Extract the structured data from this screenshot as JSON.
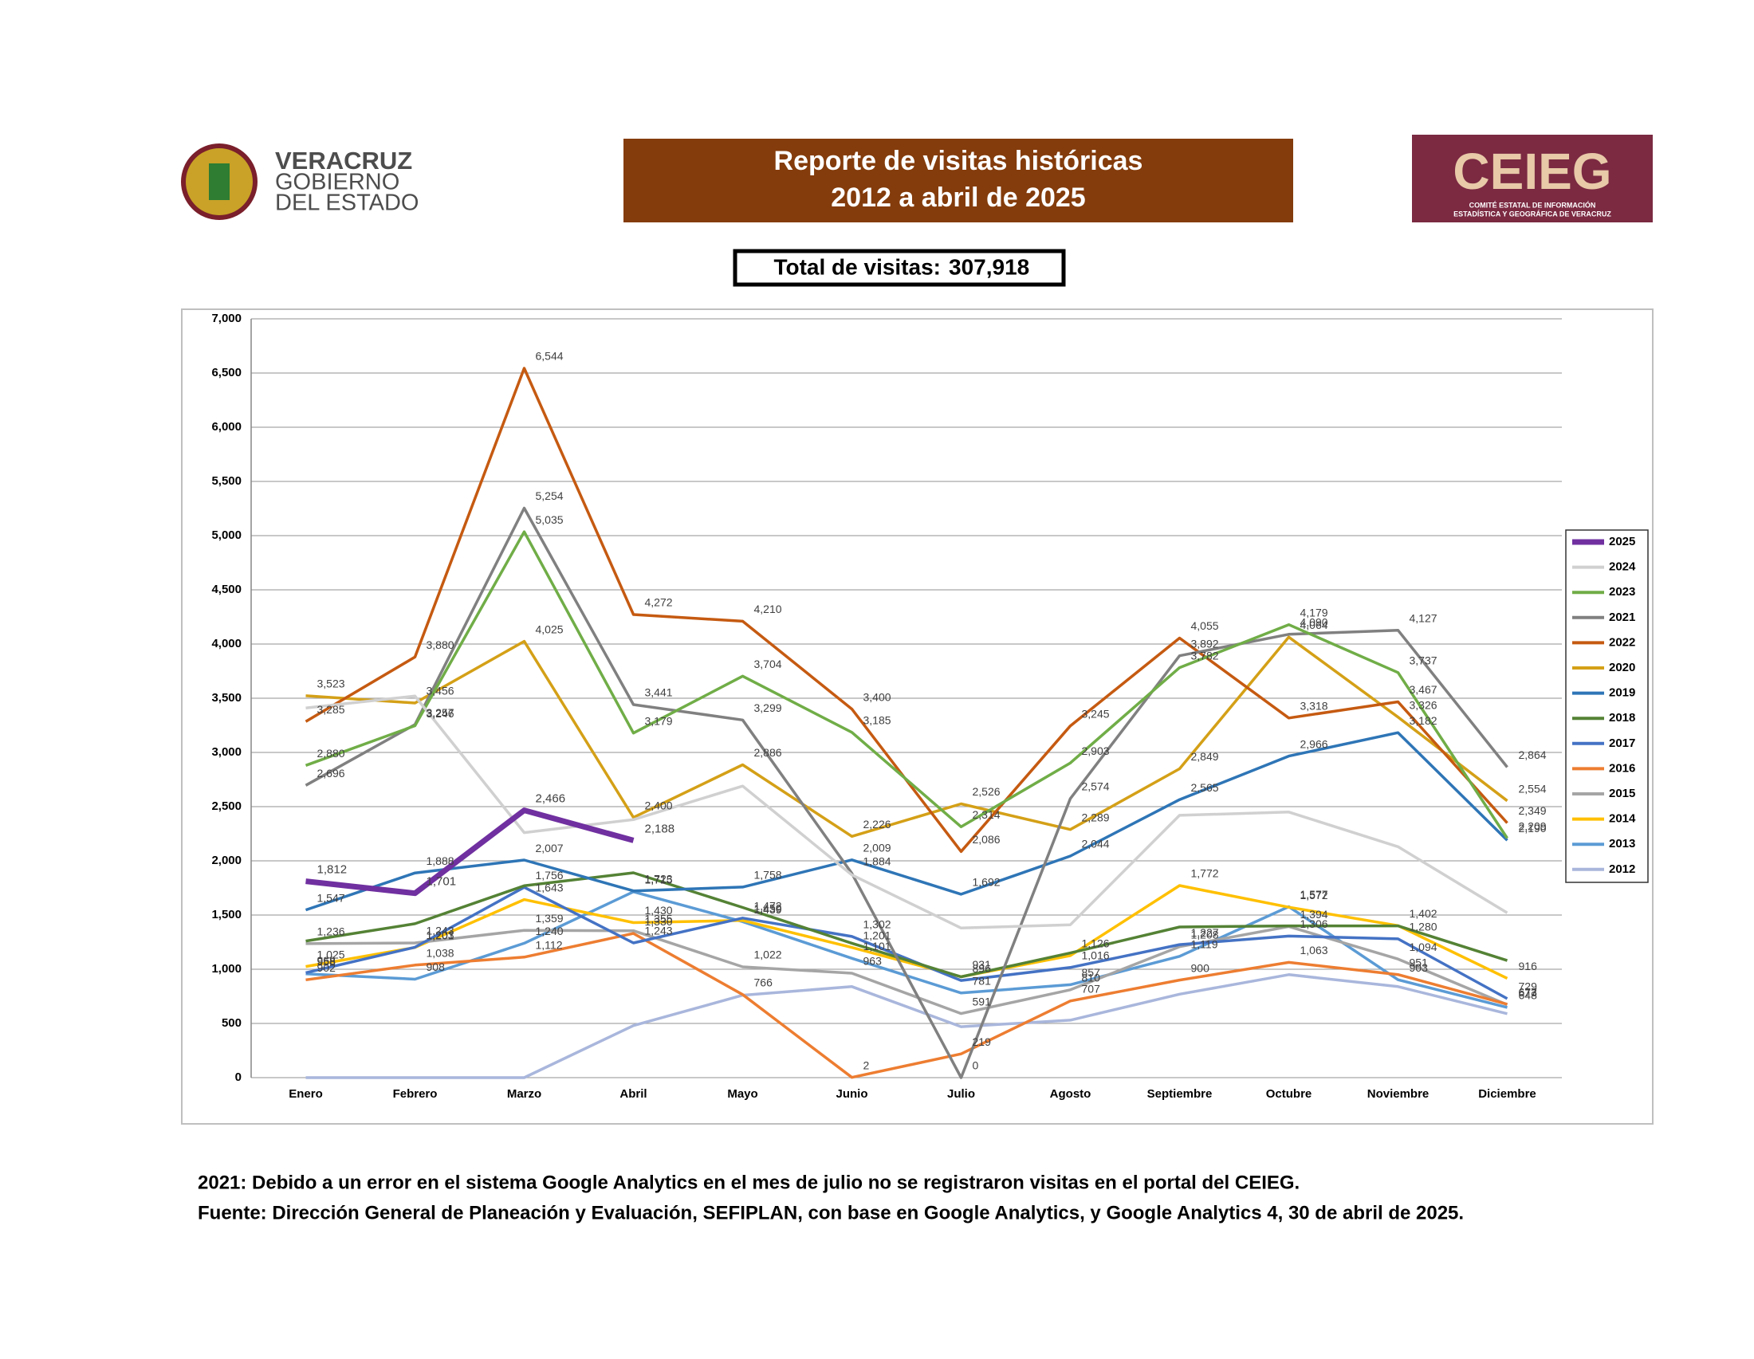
{
  "header": {
    "logo_left": {
      "line1": "VERACRUZ",
      "line2": "GOBIERNO",
      "line3": "DEL ESTADO"
    },
    "title_line1": "Reporte de visitas históricas",
    "title_line2": "2012 a abril de 2025",
    "logo_right": {
      "name": "CEIEG",
      "line1": "COMITÉ ESTATAL DE INFORMACIÓN",
      "line2": "ESTADÍSTICA Y GEOGRÁFICA DE VERACRUZ"
    },
    "total_label": "Total de visitas:",
    "total_value": "307,918"
  },
  "chart_data": {
    "type": "line",
    "legend": "right",
    "categories": [
      "Enero",
      "Febrero",
      "Marzo",
      "Abril",
      "Mayo",
      "Junio",
      "Julio",
      "Agosto",
      "Septiembre",
      "Octubre",
      "Noviembre",
      "Diciembre"
    ],
    "ylim": [
      0,
      7000
    ],
    "yticks": [
      0,
      500,
      {
        "value": 1000,
        "label": "1,000"
      },
      {
        "value": 1500,
        "label": "1,500"
      },
      {
        "value": 2000,
        "label": "2,000"
      },
      {
        "value": 2500,
        "label": "2,500"
      },
      {
        "value": 3000,
        "label": "3,000"
      },
      {
        "value": 3500,
        "label": "3,500"
      },
      {
        "value": 4000,
        "label": "4,000"
      },
      {
        "value": 4500,
        "label": "4,500"
      },
      {
        "value": 5000,
        "label": "5,000"
      },
      {
        "value": 5500,
        "label": "5,500"
      },
      {
        "value": 6000,
        "label": "6,000"
      },
      {
        "value": 6500,
        "label": "6,500"
      },
      {
        "value": 7000,
        "label": "7,000"
      }
    ],
    "grid": true,
    "series": [
      {
        "name": "2025",
        "color": "#7030a0",
        "values": [
          1812,
          1701,
          2466,
          2188,
          null,
          null,
          null,
          null,
          null,
          null,
          null,
          null
        ],
        "value_labels": [
          "1,812",
          "1,701",
          "2,466",
          "2,188",
          null,
          null,
          null,
          null,
          null,
          null,
          null,
          null
        ]
      },
      {
        "name": "2024",
        "color": "#d0d0d0",
        "values": [
          3410,
          3520,
          2260,
          2380,
          2690,
          1870,
          1380,
          1410,
          2420,
          2450,
          2130,
          1520
        ]
      },
      {
        "name": "2023",
        "color": "#70ad47",
        "values": [
          2880,
          3246,
          5035,
          3179,
          3704,
          3185,
          2314,
          2903,
          3782,
          4179,
          3737,
          2209
        ],
        "value_labels": [
          "2,880",
          "3,246",
          "5,035",
          "3,179",
          "3,704",
          "3,185",
          "2,314",
          "2,903",
          "3,782",
          "4,179",
          "3,737",
          "2,209"
        ]
      },
      {
        "name": "2021",
        "color": "#808080",
        "values": [
          2696,
          3257,
          5254,
          3441,
          3299,
          1884,
          0,
          2574,
          3892,
          4090,
          4127,
          2864
        ],
        "value_labels": [
          "2,696",
          "3,257",
          "5,254",
          "3,441",
          "3,299",
          "1,884",
          "0",
          "2,574",
          "3,892",
          "4,090",
          "4,127",
          "2,864"
        ]
      },
      {
        "name": "2022",
        "color": "#c55a11",
        "values": [
          3285,
          3880,
          6544,
          4272,
          4210,
          3400,
          2086,
          3245,
          4055,
          3318,
          3467,
          2349
        ],
        "value_labels": [
          "3,285",
          "3,880",
          "6,544",
          "4,272",
          "4,210",
          "3,400",
          "2,086",
          "3,245",
          "4,055",
          "3,318",
          "3,467",
          "2,349"
        ]
      },
      {
        "name": "2020",
        "color": "#d4a017",
        "values": [
          3523,
          3456,
          4025,
          2400,
          2886,
          2226,
          2526,
          2289,
          2849,
          4064,
          3326,
          2554
        ],
        "value_labels": [
          "3,523",
          "3,456",
          "4,025",
          "2,400",
          "2,886",
          "2,226",
          "2,526",
          "2,289",
          "2,849",
          "4,064",
          "3,326",
          "2,554"
        ]
      },
      {
        "name": "2019",
        "color": "#2e75b6",
        "values": [
          1547,
          1888,
          2007,
          1723,
          1758,
          2009,
          1692,
          2044,
          2565,
          2966,
          3182,
          2190
        ],
        "value_labels": [
          "1,547",
          "1,888",
          "2,007",
          "1,723",
          "1,758",
          "2,009",
          "1,692",
          "2,044",
          "2,565",
          "2,966",
          "3,182",
          "2,190"
        ]
      },
      {
        "name": "2018",
        "color": "#548235",
        "values": [
          1260,
          1420,
          1770,
          1890,
          1570,
          1240,
          930,
          1150,
          1390,
          1400,
          1400,
          1080
        ]
      },
      {
        "name": "2017",
        "color": "#4472c4",
        "values": [
          968,
          1203,
          1756,
          1243,
          1472,
          1302,
          896,
          1016,
          1227,
          1306,
          1280,
          729
        ],
        "value_labels": [
          "968",
          "1,203",
          "1,756",
          "1,243",
          "1,472",
          "1,302",
          "896",
          "1,016",
          "1,227",
          "1,306",
          "1,280",
          "729"
        ]
      },
      {
        "name": "2016",
        "color": "#ed7d31",
        "values": [
          902,
          1038,
          1112,
          1330,
          766,
          2,
          219,
          707,
          900,
          1063,
          951,
          677
        ],
        "value_labels": [
          "902",
          "1,038",
          "1,112",
          "1,330",
          "766",
          "2",
          "219",
          "707",
          "900",
          "1,063",
          "951",
          "677"
        ]
      },
      {
        "name": "2015",
        "color": "#a5a5a5",
        "values": [
          1236,
          1243,
          1359,
          1355,
          1022,
          963,
          591,
          810,
          1208,
          1394,
          1094,
          673
        ],
        "value_labels": [
          "1,236",
          "1,243",
          "1,359",
          "1,355",
          "1,022",
          "963",
          "591",
          "810",
          "1,208",
          "1,394",
          "1,094",
          "673"
        ]
      },
      {
        "name": "2014",
        "color": "#ffc000",
        "values": [
          1025,
          1201,
          1643,
          1430,
          1450,
          1201,
          931,
          1126,
          1772,
          1572,
          1402,
          916
        ],
        "value_labels": [
          "1,025",
          "1,201",
          "1,643",
          "1,430",
          "1,450",
          "1,201",
          "931",
          "1,126",
          "1,772",
          "1,572",
          "1,402",
          "916"
        ]
      },
      {
        "name": "2013",
        "color": "#5b9bd5",
        "values": [
          958,
          908,
          1240,
          1715,
          1439,
          1101,
          781,
          857,
          1119,
          1577,
          903,
          648
        ],
        "value_labels": [
          "958",
          "908",
          "1,240",
          "1,715",
          "1,439",
          "1,101",
          "781",
          "857",
          "1,119",
          "1,577",
          "903",
          "648"
        ]
      },
      {
        "name": "2012",
        "color": "#a9b6dc",
        "values": [
          0,
          0,
          0,
          480,
          760,
          840,
          470,
          530,
          770,
          950,
          840,
          590
        ]
      }
    ]
  },
  "notes": [
    "2021: Debido a un error en el sistema Google Analytics en el mes de julio no se registraron visitas en el portal del CEIEG.",
    "Fuente: Dirección General de Planeación y Evaluación, SEFIPLAN, con base en Google Analytics, y Google Analytics 4, 30 de abril de 2025."
  ]
}
